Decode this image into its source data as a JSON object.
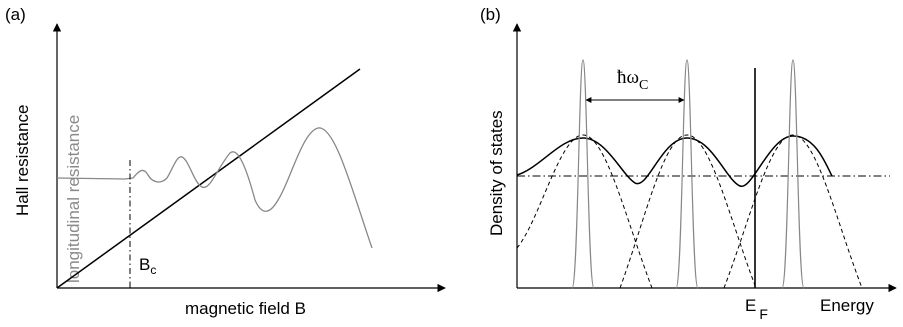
{
  "panel_a": {
    "tag": "(a)",
    "y_label": "Hall resistance",
    "y_label_secondary": "longitudinal resistance",
    "x_label": "magnetic field B",
    "threshold_label_main": "B",
    "threshold_label_sub": "c"
  },
  "panel_b": {
    "tag": "(b)",
    "y_label": "Density of states",
    "x_label": "Energy",
    "fermi_label_main": "E",
    "fermi_label_sub": "F",
    "spacing_label_main": "ħω",
    "spacing_label_sub": "C"
  },
  "colors": {
    "axis": "#000000",
    "gray_curve": "#888888",
    "gray_text": "#8a8a8a"
  }
}
